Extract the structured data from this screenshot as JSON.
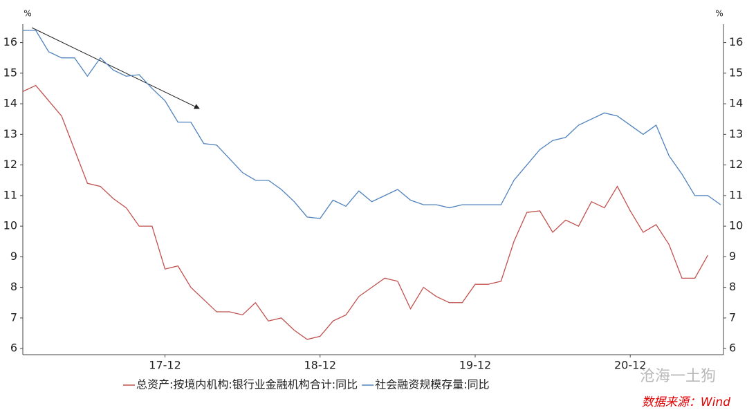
{
  "chart_data": {
    "type": "line",
    "y_label": "%",
    "y2_label": "%",
    "categories": [
      null,
      null,
      null,
      null,
      null,
      null,
      null,
      null,
      null,
      null,
      null,
      "17-12",
      null,
      null,
      null,
      null,
      null,
      null,
      null,
      null,
      null,
      null,
      null,
      "18-12",
      null,
      null,
      null,
      null,
      null,
      null,
      null,
      null,
      null,
      null,
      null,
      "19-12",
      null,
      null,
      null,
      null,
      null,
      null,
      null,
      null,
      null,
      null,
      null,
      "20-12",
      null,
      null,
      null,
      null,
      null,
      null,
      null
    ],
    "series": [
      {
        "name": "总资产:按境内机构:银行业金融机构合计:同比",
        "color": "#c0504d",
        "values": [
          14.4,
          14.6,
          14.1,
          13.6,
          12.5,
          11.4,
          11.3,
          10.9,
          10.6,
          10.0,
          10.0,
          8.6,
          8.7,
          8.0,
          7.6,
          7.2,
          7.2,
          7.1,
          7.5,
          6.9,
          7.0,
          6.6,
          6.3,
          6.4,
          6.9,
          7.1,
          7.7,
          8.0,
          8.3,
          8.2,
          7.3,
          8.0,
          7.7,
          7.5,
          7.5,
          8.1,
          8.1,
          8.2,
          9.5,
          10.45,
          10.5,
          9.8,
          10.2,
          10.0,
          10.8,
          10.6,
          11.3,
          10.5,
          9.8,
          10.05,
          9.4,
          8.3,
          8.3,
          9.05,
          null
        ]
      },
      {
        "name": "社会融资规模存量:同比",
        "color": "#4f81bd",
        "axis": "y2",
        "values": [
          16.4,
          16.4,
          15.7,
          15.5,
          15.5,
          14.9,
          15.5,
          15.1,
          14.9,
          14.95,
          14.5,
          14.1,
          13.4,
          13.4,
          12.7,
          12.65,
          12.2,
          11.75,
          11.5,
          11.5,
          11.2,
          10.8,
          10.3,
          10.25,
          10.85,
          10.65,
          11.15,
          10.8,
          11.0,
          11.2,
          10.85,
          10.7,
          10.7,
          10.6,
          10.7,
          10.7,
          10.7,
          10.7,
          11.5,
          12.0,
          12.5,
          12.8,
          12.9,
          13.3,
          13.5,
          13.7,
          13.6,
          13.3,
          13.0,
          13.3,
          12.3,
          11.7,
          11.0,
          11.0,
          10.7
        ]
      }
    ],
    "ylim": [
      5.8,
      16.6
    ],
    "yticks": [
      6,
      7,
      8,
      9,
      10,
      11,
      12,
      13,
      14,
      15,
      16
    ],
    "y2lim": [
      5.8,
      16.6
    ],
    "y2ticks": [
      6,
      7,
      8,
      9,
      10,
      11,
      12,
      13,
      14,
      15,
      16
    ],
    "legend": "bottom",
    "grid": false,
    "watermark": "沧海一土狗",
    "source": "数据来源：Wind"
  }
}
